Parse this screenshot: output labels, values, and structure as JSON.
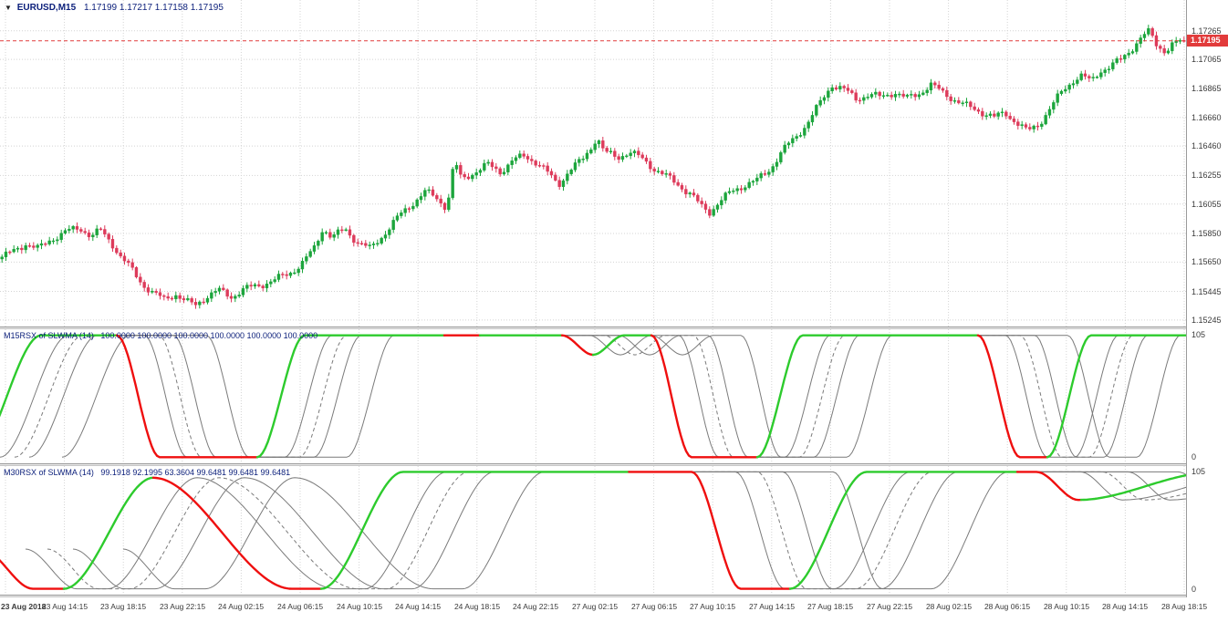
{
  "header": {
    "marker": "▼",
    "symbol": "EURUSD,M15",
    "ohlc": "1.17199 1.17217 1.17158 1.17195"
  },
  "colors": {
    "navy_text": "#0a1e7a",
    "candle_up": "#1ca53c",
    "candle_down": "#dd3b5b",
    "indicator_up": "#2dcb2d",
    "indicator_down": "#ef0f0f",
    "companion_gray": "#7a7a7a",
    "grid": "#d4d4d4",
    "current_price_line": "#e23b3b",
    "price_tag_bg": "#e23b3b",
    "axis_text": "#3a3a3a"
  },
  "time_axis": {
    "labels": [
      "23 Aug 2018",
      "23 Aug 14:15",
      "23 Aug 18:15",
      "23 Aug 22:15",
      "24 Aug 02:15",
      "24 Aug 06:15",
      "24 Aug 10:15",
      "24 Aug 14:15",
      "24 Aug 18:15",
      "24 Aug 22:15",
      "27 Aug 02:15",
      "27 Aug 06:15",
      "27 Aug 10:15",
      "27 Aug 14:15",
      "27 Aug 18:15",
      "27 Aug 22:15",
      "28 Aug 02:15",
      "28 Aug 06:15",
      "28 Aug 10:15",
      "28 Aug 14:15",
      "28 Aug 18:15"
    ]
  },
  "chart_data": [
    {
      "name": "main-price-chart",
      "type": "candlestick",
      "symbol": "EURUSD",
      "timeframe": "M15",
      "open": "1.17199",
      "high": "1.17217",
      "low": "1.17158",
      "close": "1.17195",
      "last_price": 1.17195,
      "current_price_label": "1.17195",
      "ylim": [
        1.152,
        1.1748
      ],
      "y_ticks": [
        "1.17265",
        "1.17065",
        "1.16865",
        "1.16660",
        "1.16460",
        "1.16255",
        "1.16055",
        "1.15850",
        "1.15650",
        "1.15445",
        "1.15245"
      ],
      "candles": 300,
      "price_path": [
        [
          0,
          1.1568
        ],
        [
          14,
          1.1572
        ],
        [
          28,
          1.1578
        ],
        [
          42,
          1.1574
        ],
        [
          56,
          1.1581
        ],
        [
          72,
          1.1586
        ],
        [
          88,
          1.1589
        ],
        [
          100,
          1.1583
        ],
        [
          110,
          1.1587
        ],
        [
          122,
          1.1579
        ],
        [
          132,
          1.1569
        ],
        [
          144,
          1.156
        ],
        [
          156,
          1.155
        ],
        [
          168,
          1.1543
        ],
        [
          180,
          1.1539
        ],
        [
          192,
          1.1543
        ],
        [
          204,
          1.1537
        ],
        [
          214,
          1.1535
        ],
        [
          226,
          1.1541
        ],
        [
          240,
          1.1545
        ],
        [
          254,
          1.1541
        ],
        [
          268,
          1.1546
        ],
        [
          284,
          1.1549
        ],
        [
          300,
          1.1552
        ],
        [
          316,
          1.1557
        ],
        [
          330,
          1.1563
        ],
        [
          344,
          1.1574
        ],
        [
          354,
          1.1589
        ],
        [
          364,
          1.1582
        ],
        [
          378,
          1.1588
        ],
        [
          392,
          1.1579
        ],
        [
          406,
          1.1574
        ],
        [
          420,
          1.1584
        ],
        [
          436,
          1.1596
        ],
        [
          452,
          1.1606
        ],
        [
          466,
          1.1614
        ],
        [
          478,
          1.161
        ],
        [
          490,
          1.1603
        ],
        [
          498,
          1.1636
        ],
        [
          506,
          1.1622
        ],
        [
          520,
          1.1628
        ],
        [
          534,
          1.1633
        ],
        [
          548,
          1.1628
        ],
        [
          562,
          1.1636
        ],
        [
          576,
          1.1639
        ],
        [
          590,
          1.1634
        ],
        [
          602,
          1.1626
        ],
        [
          612,
          1.1619
        ],
        [
          624,
          1.1629
        ],
        [
          638,
          1.1636
        ],
        [
          650,
          1.1647
        ],
        [
          654,
          1.1653
        ],
        [
          662,
          1.1642
        ],
        [
          676,
          1.1638
        ],
        [
          690,
          1.1642
        ],
        [
          704,
          1.1637
        ],
        [
          718,
          1.163
        ],
        [
          732,
          1.1624
        ],
        [
          746,
          1.1618
        ],
        [
          758,
          1.1612
        ],
        [
          768,
          1.1604
        ],
        [
          778,
          1.16
        ],
        [
          788,
          1.1607
        ],
        [
          802,
          1.1614
        ],
        [
          816,
          1.1619
        ],
        [
          830,
          1.1622
        ],
        [
          844,
          1.163
        ],
        [
          858,
          1.1643
        ],
        [
          872,
          1.1652
        ],
        [
          886,
          1.1663
        ],
        [
          900,
          1.1677
        ],
        [
          912,
          1.1689
        ],
        [
          924,
          1.1686
        ],
        [
          938,
          1.1679
        ],
        [
          952,
          1.1682
        ],
        [
          966,
          1.168
        ],
        [
          980,
          1.1684
        ],
        [
          994,
          1.1679
        ],
        [
          1008,
          1.1683
        ],
        [
          1020,
          1.1689
        ],
        [
          1034,
          1.1683
        ],
        [
          1048,
          1.1678
        ],
        [
          1062,
          1.1673
        ],
        [
          1076,
          1.167
        ],
        [
          1090,
          1.1666
        ],
        [
          1102,
          1.1669
        ],
        [
          1114,
          1.1663
        ],
        [
          1126,
          1.1656
        ],
        [
          1138,
          1.1661
        ],
        [
          1152,
          1.1673
        ],
        [
          1164,
          1.1684
        ],
        [
          1176,
          1.1692
        ],
        [
          1186,
          1.1695
        ],
        [
          1196,
          1.1691
        ],
        [
          1206,
          1.1699
        ],
        [
          1216,
          1.1701
        ],
        [
          1228,
          1.1706
        ],
        [
          1240,
          1.1714
        ],
        [
          1252,
          1.1722
        ],
        [
          1260,
          1.1726
        ],
        [
          1268,
          1.1717
        ],
        [
          1278,
          1.1712
        ],
        [
          1288,
          1.1718
        ],
        [
          1300,
          1.17195
        ]
      ]
    },
    {
      "name": "m15rsx-panel",
      "type": "line",
      "label": "M15RSX of SLWMA (14)",
      "values_text": "100.0000 100.0000 100.0000 100.0000 100.0000 100.0000",
      "scale_max": "105",
      "scale_min": "0",
      "ylim": [
        -5,
        105
      ],
      "anchors": [
        [
          -30,
          0
        ],
        [
          45,
          100
        ],
        [
          128,
          100
        ],
        [
          175,
          0
        ],
        [
          282,
          0
        ],
        [
          334,
          100
        ],
        [
          616,
          100
        ],
        [
          650,
          84
        ],
        [
          684,
          100
        ],
        [
          714,
          100
        ],
        [
          758,
          0
        ],
        [
          830,
          0
        ],
        [
          880,
          100
        ],
        [
          1072,
          100
        ],
        [
          1118,
          0
        ],
        [
          1148,
          0
        ],
        [
          1196,
          100
        ],
        [
          1330,
          100
        ]
      ],
      "color_runs": [
        [
          -30,
          128,
          "up"
        ],
        [
          128,
          282,
          "down"
        ],
        [
          282,
          487,
          "up"
        ],
        [
          487,
          527,
          "down"
        ],
        [
          527,
          616,
          "up"
        ],
        [
          616,
          650,
          "down"
        ],
        [
          650,
          714,
          "up"
        ],
        [
          714,
          830,
          "down"
        ],
        [
          830,
          1072,
          "up"
        ],
        [
          1072,
          1148,
          "down"
        ],
        [
          1148,
          1330,
          "up"
        ]
      ],
      "gray_shifts": [
        30,
        62,
        98
      ],
      "dashed_shift": 46
    },
    {
      "name": "m30rsx-panel",
      "type": "line",
      "label": "M30RSX of SLWMA (14)",
      "values_text": "99.1918 92.1995 63.3604 99.6481 99.6481 99.6481",
      "scale_max": "105",
      "scale_min": "0",
      "ylim": [
        -5,
        105
      ],
      "anchors": [
        [
          -20,
          34
        ],
        [
          36,
          0
        ],
        [
          70,
          0
        ],
        [
          168,
          95
        ],
        [
          320,
          0
        ],
        [
          352,
          0
        ],
        [
          442,
          100
        ],
        [
          758,
          100
        ],
        [
          812,
          0
        ],
        [
          866,
          0
        ],
        [
          950,
          100
        ],
        [
          1136,
          100
        ],
        [
          1182,
          76
        ],
        [
          1330,
          99.6
        ]
      ],
      "color_runs": [
        [
          -20,
          70,
          "down"
        ],
        [
          70,
          168,
          "up"
        ],
        [
          168,
          352,
          "down"
        ],
        [
          352,
          690,
          "up"
        ],
        [
          690,
          866,
          "down"
        ],
        [
          866,
          1115,
          "up"
        ],
        [
          1115,
          1185,
          "down"
        ],
        [
          1185,
          1330,
          "up"
        ]
      ],
      "gray_shifts": [
        48,
        100,
        155
      ],
      "dashed_shift": 72
    }
  ]
}
